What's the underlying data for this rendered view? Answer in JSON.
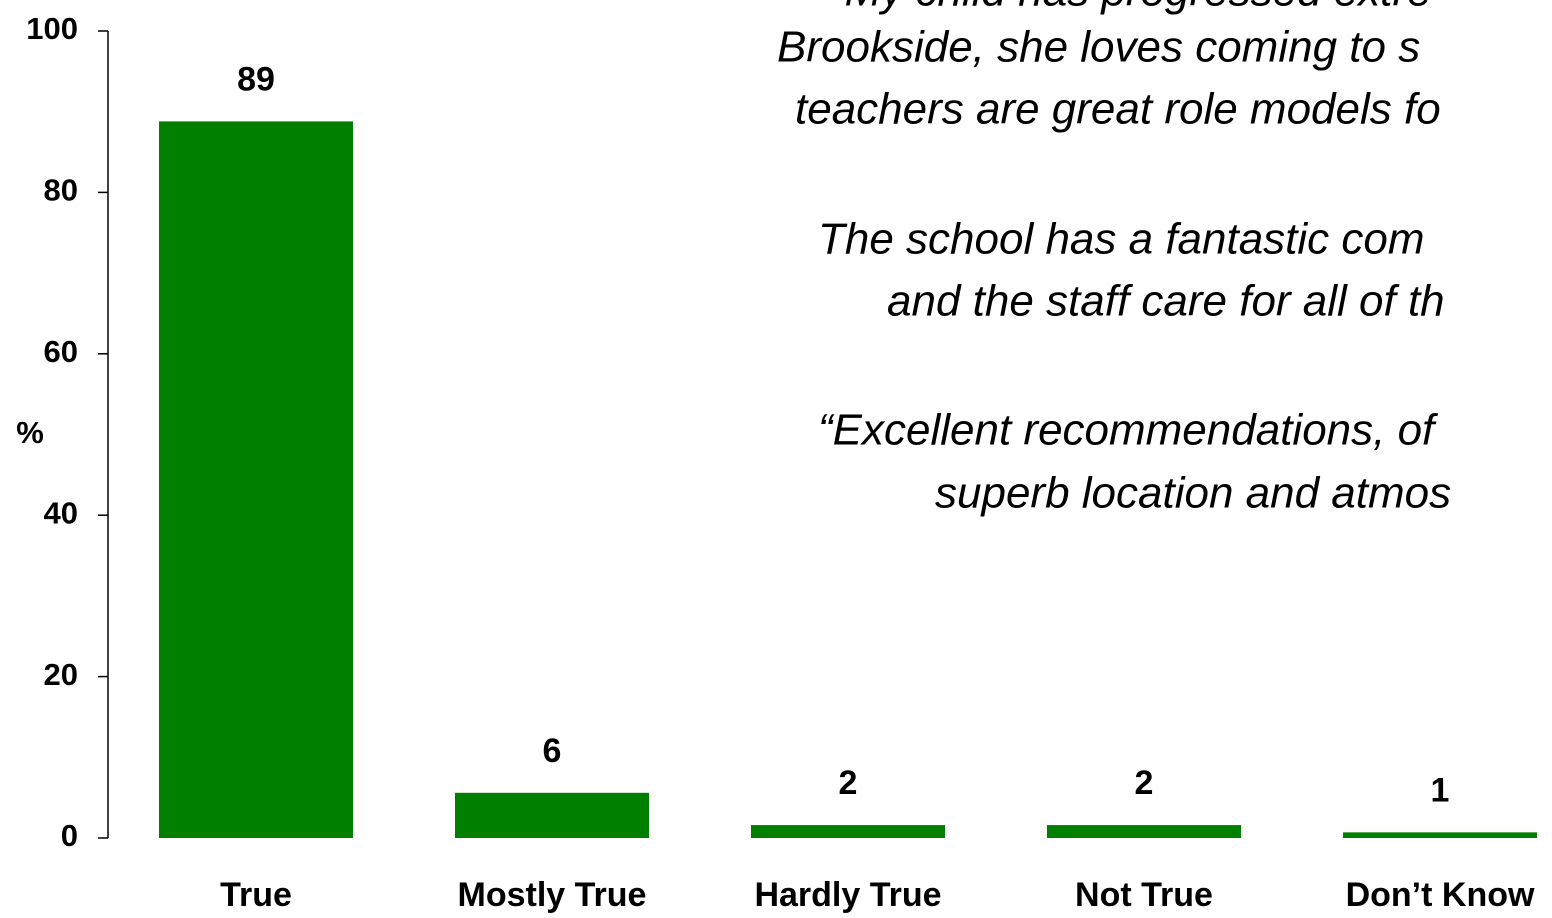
{
  "chart_data": {
    "type": "bar",
    "y_label": "%",
    "categories": [
      "True",
      "Mostly True",
      "Hardly True",
      "Not True",
      "Don’t Know"
    ],
    "values": [
      88.8,
      5.6,
      1.6,
      1.6,
      0.7
    ],
    "value_labels": [
      "89",
      "6",
      "2",
      "2",
      "1"
    ],
    "color": "#007f00",
    "ylim": [
      0,
      100
    ],
    "yticks": [
      0,
      20,
      40,
      60,
      80,
      100
    ],
    "grid": false,
    "annotations": [
      "“My child has progressed extre",
      "Brookside, she loves coming to s",
      "teachers are great role models fo",
      "The school has a fantastic com",
      "and the staff care for all of th",
      "“Excellent recommendations, of",
      "superb location and atmos"
    ]
  }
}
